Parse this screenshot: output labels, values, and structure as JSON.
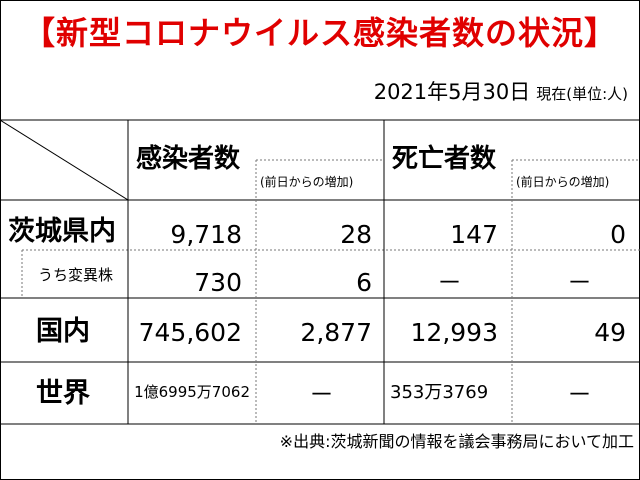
{
  "title": "【新型コロナウイルス感染者数の状況】",
  "date": "2021年5月30日",
  "date_note": "現在(単位:人)",
  "headers": {
    "infected": "感染者数",
    "infected_delta": "(前日からの増加)",
    "deaths": "死亡者数",
    "deaths_delta": "(前日からの増加)"
  },
  "rows": [
    {
      "label": "茨城県内",
      "infected": "9,718",
      "infected_delta": "28",
      "deaths": "147",
      "deaths_delta": "0"
    },
    {
      "label": "うち変異株",
      "infected": "730",
      "infected_delta": "6",
      "deaths": "－",
      "deaths_delta": "－"
    },
    {
      "label": "国内",
      "infected": "745,602",
      "infected_delta": "2,877",
      "deaths": "12,993",
      "deaths_delta": "49"
    },
    {
      "label": "世界",
      "infected": "1億6995万7062",
      "infected_delta": "－",
      "deaths": "353万3769",
      "deaths_delta": "－"
    }
  ],
  "source": "※出典:茨城新聞の情報を議会事務局において加工",
  "colors": {
    "title": "#e00000",
    "lines": "#000000",
    "dotted": "#777777"
  }
}
